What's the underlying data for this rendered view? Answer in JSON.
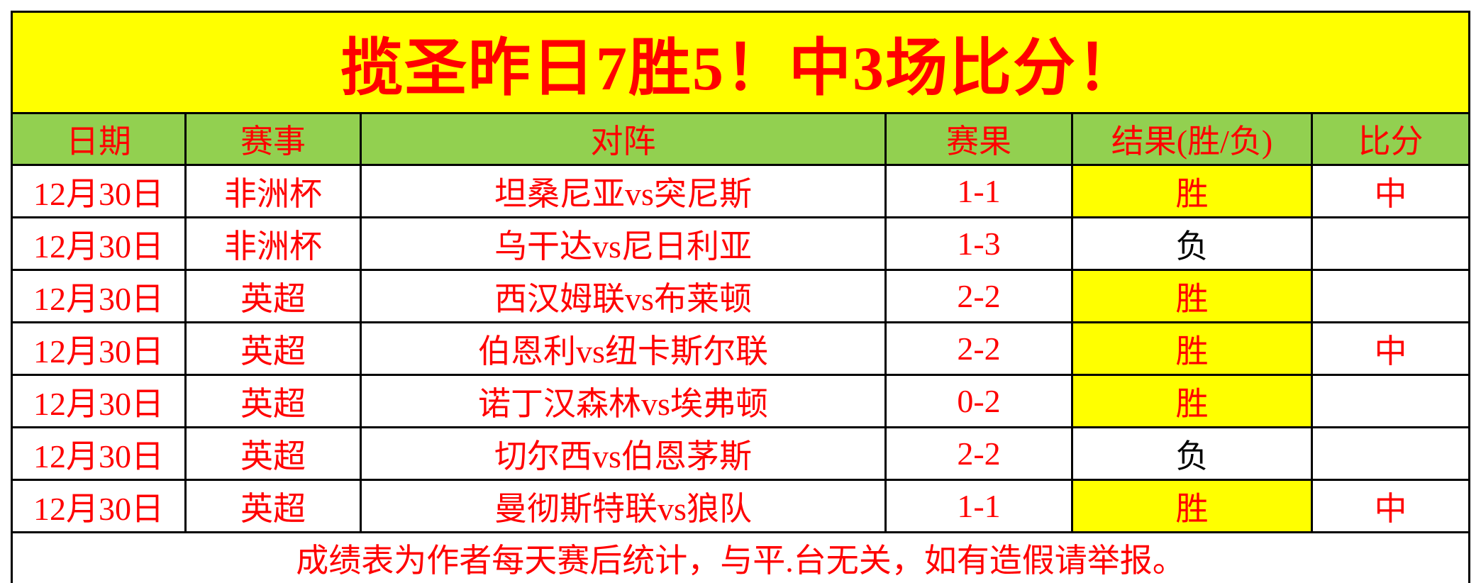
{
  "title": "揽圣昨日7胜5！中3场比分！",
  "chart_data": {
    "type": "table",
    "title": "揽圣昨日7胜5！中3场比分！",
    "columns": [
      "日期",
      "赛事",
      "对阵",
      "赛果",
      "结果(胜/负)",
      "比分"
    ],
    "rows": [
      {
        "date": "12月30日",
        "competition": "非洲杯",
        "matchup": "坦桑尼亚vs突尼斯",
        "score": "1-1",
        "result": "胜",
        "hit": "中"
      },
      {
        "date": "12月30日",
        "competition": "非洲杯",
        "matchup": "乌干达vs尼日利亚",
        "score": "1-3",
        "result": "负",
        "hit": ""
      },
      {
        "date": "12月30日",
        "competition": "英超",
        "matchup": "西汉姆联vs布莱顿",
        "score": "2-2",
        "result": "胜",
        "hit": ""
      },
      {
        "date": "12月30日",
        "competition": "英超",
        "matchup": "伯恩利vs纽卡斯尔联",
        "score": "2-2",
        "result": "胜",
        "hit": "中"
      },
      {
        "date": "12月30日",
        "competition": "英超",
        "matchup": "诺丁汉森林vs埃弗顿",
        "score": "0-2",
        "result": "胜",
        "hit": ""
      },
      {
        "date": "12月30日",
        "competition": "英超",
        "matchup": "切尔西vs伯恩茅斯",
        "score": "2-2",
        "result": "负",
        "hit": ""
      },
      {
        "date": "12月30日",
        "competition": "英超",
        "matchup": "曼彻斯特联vs狼队",
        "score": "1-1",
        "result": "胜",
        "hit": "中"
      }
    ],
    "summary": {
      "wins": 5,
      "losses": 2,
      "score_hits": 3
    }
  },
  "footer": {
    "note": "成绩表为作者每天赛后统计，与平.台无关，如有造假请举报。"
  },
  "colors": {
    "title_bg": "#FFFF00",
    "header_bg": "#92D050",
    "win_bg": "#FFFF00",
    "text_red": "#FF0000",
    "loss_text": "#000000",
    "border": "#000000",
    "page_bg": "#FFFFFF"
  }
}
